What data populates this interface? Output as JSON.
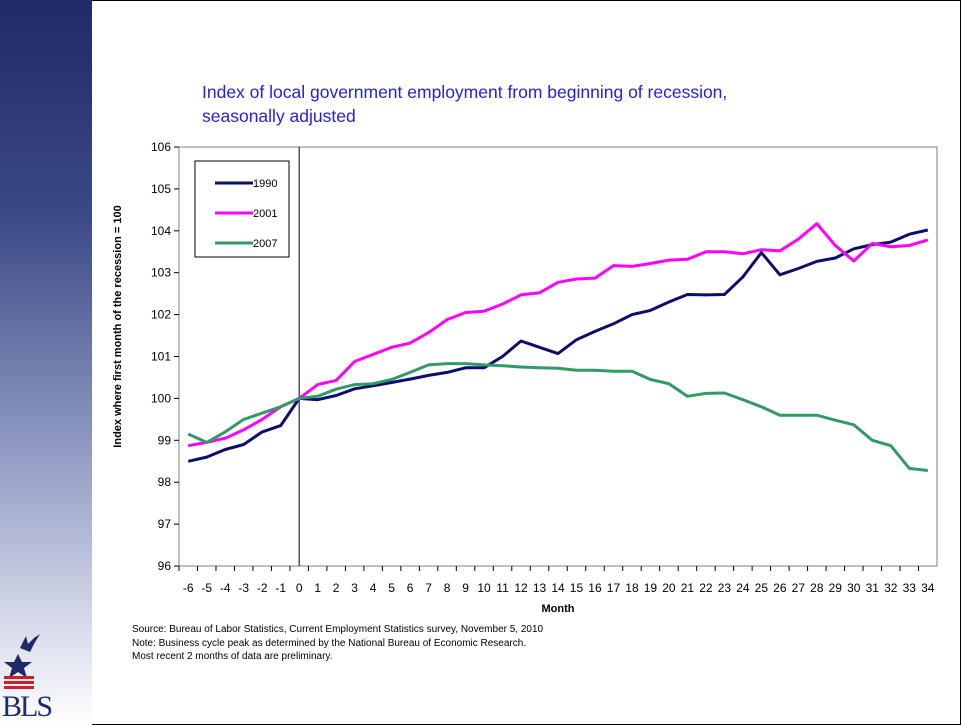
{
  "chart_data": {
    "type": "line",
    "title": [
      "Index of local government employment from beginning of recession,",
      "seasonally adjusted"
    ],
    "xlabel": "Month",
    "ylabel": "Index where first month of the recession = 100",
    "x": [
      -6,
      -5,
      -4,
      -3,
      -2,
      -1,
      0,
      1,
      2,
      3,
      4,
      5,
      6,
      7,
      8,
      9,
      10,
      11,
      12,
      13,
      14,
      15,
      16,
      17,
      18,
      19,
      20,
      21,
      22,
      23,
      24,
      25,
      26,
      27,
      28,
      29,
      30,
      31,
      32,
      33,
      34
    ],
    "x_ticks": [
      "-6",
      "-5",
      "-4",
      "-3",
      "-2",
      "-1",
      "0",
      "1",
      "2",
      "3",
      "4",
      "5",
      "6",
      "7",
      "8",
      "9",
      "10",
      "11",
      "12",
      "13",
      "14",
      "15",
      "16",
      "17",
      "18",
      "19",
      "20",
      "21",
      "22",
      "23",
      "24",
      "25",
      "26",
      "27",
      "28",
      "29",
      "30",
      "31",
      "32",
      "33",
      "34"
    ],
    "y_ticks": [
      "96",
      "97",
      "98",
      "99",
      "100",
      "101",
      "102",
      "103",
      "104",
      "105",
      "106"
    ],
    "ylim": [
      96,
      106
    ],
    "grid": false,
    "legend_position": "top-left",
    "series": [
      {
        "name": "1990",
        "color": "#0d0d6b",
        "values": [
          98.5,
          98.6,
          98.78,
          98.9,
          99.2,
          99.35,
          100,
          99.97,
          100.07,
          100.23,
          100.3,
          100.38,
          100.46,
          100.55,
          100.62,
          100.73,
          100.73,
          101.0,
          101.37,
          101.22,
          101.07,
          101.4,
          101.6,
          101.78,
          102.0,
          102.1,
          102.3,
          102.48,
          102.47,
          102.48,
          102.9,
          103.48,
          102.95,
          103.1,
          103.27,
          103.35,
          103.57,
          103.67,
          103.73,
          103.92,
          104.02
        ]
      },
      {
        "name": "2001",
        "color": "#ff00ff",
        "values": [
          98.87,
          98.95,
          99.05,
          99.25,
          99.5,
          99.8,
          100,
          100.33,
          100.43,
          100.88,
          101.05,
          101.22,
          101.32,
          101.57,
          101.88,
          102.05,
          102.08,
          102.25,
          102.47,
          102.52,
          102.77,
          102.85,
          102.87,
          103.17,
          103.15,
          103.22,
          103.3,
          103.32,
          103.5,
          103.5,
          103.45,
          103.55,
          103.52,
          103.8,
          104.17,
          103.65,
          103.28,
          103.7,
          103.62,
          103.65,
          103.78
        ]
      },
      {
        "name": "2007",
        "color": "#339966",
        "values": [
          99.15,
          98.95,
          99.2,
          99.5,
          99.65,
          99.8,
          100,
          100.05,
          100.22,
          100.33,
          100.35,
          100.45,
          100.62,
          100.8,
          100.83,
          100.83,
          100.8,
          100.78,
          100.75,
          100.73,
          100.72,
          100.67,
          100.67,
          100.65,
          100.65,
          100.45,
          100.35,
          100.05,
          100.12,
          100.13,
          99.97,
          99.8,
          99.6,
          99.6,
          99.6,
          99.48,
          99.37,
          99.0,
          98.87,
          98.33,
          98.28
        ]
      }
    ],
    "reference_line_x": 0
  },
  "footnotes": [
    "Source: Bureau of Labor Statistics, Current Employment Statistics survey, November 5, 2010",
    "Note: Business cycle peak as determined by the National Bureau of Economic Research.",
    "Most recent 2 months of data are preliminary."
  ],
  "logo": {
    "text": "BLS",
    "primary_color": "#1f2a68",
    "accent_color": "#c8202f"
  }
}
